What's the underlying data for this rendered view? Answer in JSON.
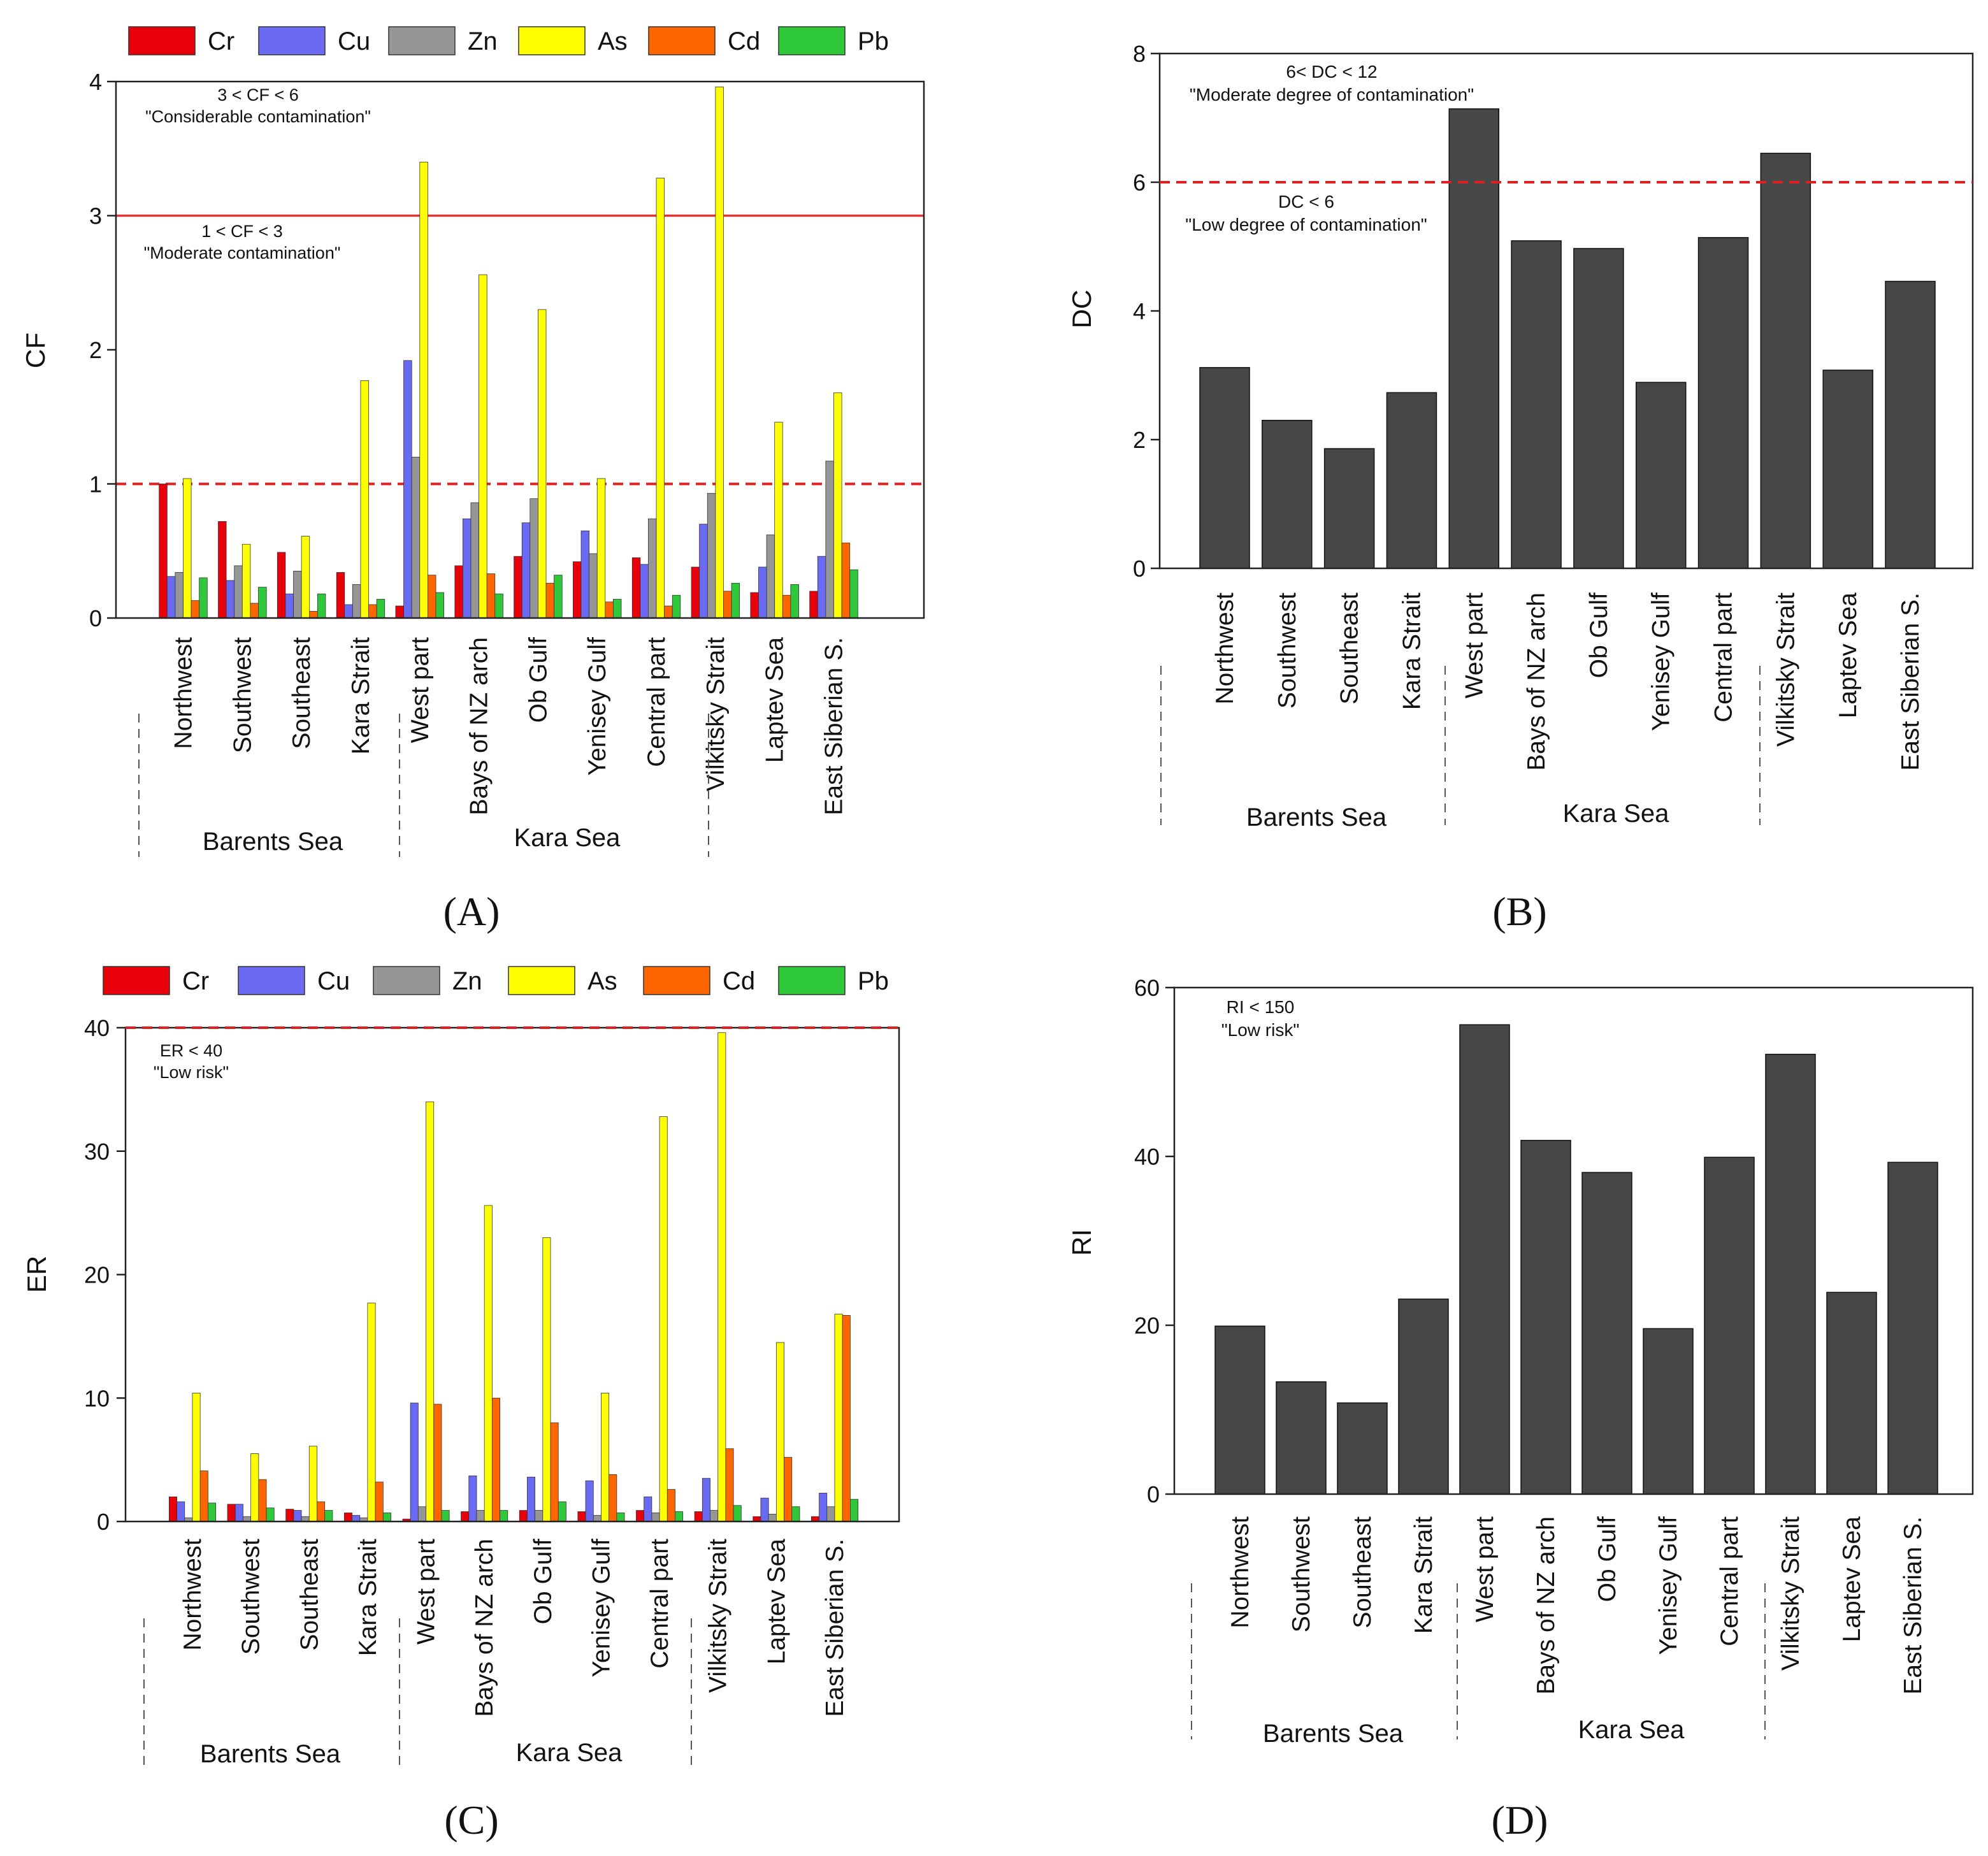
{
  "series_colors": {
    "Cr": "#e8000b",
    "Cu": "#6a6af2",
    "Zn": "#969696",
    "As": "#ffff00",
    "Cd": "#ff6600",
    "Pb": "#2fc83a"
  },
  "bar_color": "#474747",
  "threshold_solid_color": "#e83030",
  "threshold_dashed_color": "#dd2020",
  "regions": {
    "barents": "Barents Sea",
    "kara": "Kara Sea"
  },
  "panels": {
    "A": {
      "label": "A"
    },
    "B": {
      "label": "B"
    },
    "C": {
      "label": "C"
    },
    "D": {
      "label": "D"
    }
  },
  "chart_data": [
    {
      "id": "A",
      "type": "bar",
      "ylabel": "CF",
      "ylim": [
        0,
        4
      ],
      "yticks": [
        "0",
        "1",
        "2",
        "3",
        "4"
      ],
      "categories": [
        "Northwest",
        "Southwest",
        "Southeast",
        "Kara Strait",
        "West part",
        "Bays of NZ arch",
        "Ob Gulf",
        "Yenisey Gulf",
        "Central part",
        "Vilkitsky Strait",
        "Laptev Sea",
        "East Siberian S."
      ],
      "series": [
        {
          "name": "Cr",
          "values": [
            1.0,
            0.72,
            0.49,
            0.34,
            0.09,
            0.39,
            0.46,
            0.42,
            0.45,
            0.38,
            0.19,
            0.2
          ]
        },
        {
          "name": "Cu",
          "values": [
            0.31,
            0.28,
            0.18,
            0.1,
            1.92,
            0.74,
            0.71,
            0.65,
            0.4,
            0.7,
            0.38,
            0.46
          ]
        },
        {
          "name": "Zn",
          "values": [
            0.34,
            0.39,
            0.35,
            0.25,
            1.2,
            0.86,
            0.89,
            0.48,
            0.74,
            0.93,
            0.62,
            1.17
          ]
        },
        {
          "name": "As",
          "values": [
            1.04,
            0.55,
            0.61,
            1.77,
            3.4,
            2.56,
            2.3,
            1.04,
            3.28,
            3.96,
            1.46,
            1.68
          ]
        },
        {
          "name": "Cd",
          "values": [
            0.13,
            0.11,
            0.05,
            0.1,
            0.32,
            0.33,
            0.26,
            0.12,
            0.09,
            0.2,
            0.17,
            0.56
          ]
        },
        {
          "name": "Pb",
          "values": [
            0.3,
            0.23,
            0.18,
            0.14,
            0.19,
            0.18,
            0.32,
            0.14,
            0.17,
            0.26,
            0.25,
            0.36
          ]
        }
      ],
      "thresholds": [
        {
          "value": 3,
          "style": "solid"
        },
        {
          "value": 1,
          "style": "dashed"
        }
      ],
      "annotations": [
        {
          "line1": "3 < CF < 6",
          "line2": "\"Considerable contamination\""
        },
        {
          "line1": "1 < CF < 3",
          "line2": "\"Moderate contamination\""
        }
      ]
    },
    {
      "id": "B",
      "type": "bar",
      "ylabel": "DC",
      "ylim": [
        0,
        8
      ],
      "yticks": [
        "0",
        "2",
        "4",
        "6",
        "8"
      ],
      "categories": [
        "Northwest",
        "Southwest",
        "Southeast",
        "Kara Strait",
        "West part",
        "Bays of NZ arch",
        "Ob Gulf",
        "Yenisey Gulf",
        "Central part",
        "Vilkitsky Strait",
        "Laptev Sea",
        "East Siberian S."
      ],
      "values": [
        3.12,
        2.3,
        1.86,
        2.73,
        7.14,
        5.09,
        4.97,
        2.89,
        5.14,
        6.45,
        3.08,
        4.46
      ],
      "thresholds": [
        {
          "value": 6,
          "style": "dashed"
        }
      ],
      "annotations": [
        {
          "line1": "6< DC < 12",
          "line2": "\"Moderate degree of contamination\""
        },
        {
          "line1": "DC < 6",
          "line2": "\"Low degree of contamination\""
        }
      ]
    },
    {
      "id": "C",
      "type": "bar",
      "ylabel": "ER",
      "ylim": [
        0,
        40
      ],
      "yticks": [
        "0",
        "10",
        "20",
        "30",
        "40"
      ],
      "categories": [
        "Northwest",
        "Southwest",
        "Southeast",
        "Kara Strait",
        "West part",
        "Bays of NZ arch",
        "Ob Gulf",
        "Yenisey Gulf",
        "Central part",
        "Vilkitsky Strait",
        "Laptev Sea",
        "East Siberian S."
      ],
      "series": [
        {
          "name": "Cr",
          "values": [
            2.0,
            1.4,
            1.0,
            0.7,
            0.2,
            0.8,
            0.9,
            0.8,
            0.9,
            0.8,
            0.4,
            0.4
          ]
        },
        {
          "name": "Cu",
          "values": [
            1.6,
            1.4,
            0.9,
            0.5,
            9.6,
            3.7,
            3.6,
            3.3,
            2.0,
            3.5,
            1.9,
            2.3
          ]
        },
        {
          "name": "Zn",
          "values": [
            0.3,
            0.4,
            0.4,
            0.3,
            1.2,
            0.9,
            0.9,
            0.5,
            0.7,
            0.9,
            0.6,
            1.2
          ]
        },
        {
          "name": "As",
          "values": [
            10.4,
            5.5,
            6.1,
            17.7,
            34.0,
            25.6,
            23.0,
            10.4,
            32.8,
            39.6,
            14.5,
            16.8
          ]
        },
        {
          "name": "Cd",
          "values": [
            4.1,
            3.4,
            1.6,
            3.2,
            9.5,
            10.0,
            8.0,
            3.8,
            2.6,
            5.9,
            5.2,
            16.7
          ]
        },
        {
          "name": "Pb",
          "values": [
            1.5,
            1.1,
            0.9,
            0.7,
            0.9,
            0.9,
            1.6,
            0.7,
            0.8,
            1.3,
            1.2,
            1.8
          ]
        }
      ],
      "thresholds": [
        {
          "value": 40,
          "style": "dashed"
        }
      ],
      "annotations": [
        {
          "line1": "ER < 40",
          "line2": "\"Low risk\""
        }
      ]
    },
    {
      "id": "D",
      "type": "bar",
      "ylabel": "RI",
      "ylim": [
        0,
        60
      ],
      "yticks": [
        "0",
        "20",
        "40",
        "60"
      ],
      "categories": [
        "Northwest",
        "Southwest",
        "Southeast",
        "Kara Strait",
        "West part",
        "Bays of NZ arch",
        "Ob Gulf",
        "Yenisey Gulf",
        "Central part",
        "Vilkitsky Strait",
        "Laptev Sea",
        "East Siberian S."
      ],
      "values": [
        19.9,
        13.3,
        10.8,
        23.1,
        55.6,
        41.9,
        38.1,
        19.6,
        39.9,
        52.1,
        23.9,
        39.3
      ],
      "thresholds": [],
      "annotations": [
        {
          "line1": "RI < 150",
          "line2": "\"Low risk\""
        }
      ]
    }
  ]
}
